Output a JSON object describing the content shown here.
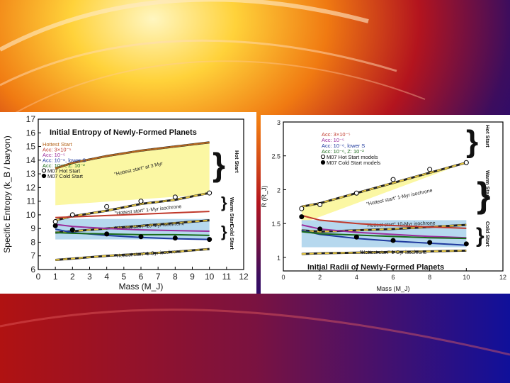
{
  "chart_data": [
    {
      "type": "line",
      "title": "Initial Entropy of Newly-Formed Planets",
      "xlabel": "Mass (M_J)",
      "ylabel": "Specific Entropy (k_B / baryon)",
      "xlim": [
        0,
        12
      ],
      "ylim": [
        6,
        17
      ],
      "xticks": [
        "0",
        "1",
        "2",
        "3",
        "4",
        "5",
        "6",
        "7",
        "8",
        "9",
        "10",
        "11",
        "12"
      ],
      "yticks": [
        "6",
        "7",
        "8",
        "9",
        "10",
        "11",
        "12",
        "13",
        "14",
        "15",
        "16",
        "17"
      ],
      "legend": [
        {
          "label": "Hottest Start",
          "color": "#b5651d"
        },
        {
          "label": "Acc: 3×10⁻⁵",
          "color": "#c0392b"
        },
        {
          "label": "Acc: 10⁻⁵",
          "color": "#9b2d9b"
        },
        {
          "label": "Acc: 10⁻⁶, lower S",
          "color": "#1f3a9e"
        },
        {
          "label": "Acc: 10⁻⁶, Z: 10⁻²",
          "color": "#1a6b1a"
        },
        {
          "label": "M07 Hot Start",
          "color": "#000000"
        },
        {
          "label": "M07 Cold Start",
          "color": "#000000"
        }
      ],
      "legend_position": "top-left",
      "series": [
        {
          "name": "Hottest Start",
          "x": [
            1,
            2,
            4,
            6,
            8,
            10
          ],
          "values": [
            13.4,
            13.8,
            14.3,
            14.7,
            15.0,
            15.3
          ]
        },
        {
          "name": "Acc: 3×10⁻⁵",
          "x": [
            1,
            2,
            4,
            6,
            8,
            10
          ],
          "values": [
            9.8,
            9.85,
            9.95,
            10.05,
            10.15,
            10.25
          ]
        },
        {
          "name": "Acc: 10⁻⁵",
          "x": [
            1,
            2,
            4,
            6,
            8,
            10
          ],
          "values": [
            9.3,
            9.15,
            9.0,
            8.9,
            8.85,
            8.8
          ]
        },
        {
          "name": "Acc: 10⁻⁶, lower S",
          "x": [
            1,
            2,
            4,
            6,
            8,
            10
          ],
          "values": [
            8.95,
            8.7,
            8.5,
            8.35,
            8.25,
            8.2
          ]
        },
        {
          "name": "Acc: 10⁻⁶, Z: 10⁻²",
          "x": [
            1,
            2,
            4,
            6,
            8,
            10
          ],
          "values": [
            8.7,
            8.65,
            8.6,
            8.55,
            8.55,
            8.5
          ]
        },
        {
          "name": "M07 Hot Start",
          "x": [
            1,
            2,
            4,
            6,
            8,
            10
          ],
          "values": [
            9.5,
            10.0,
            10.6,
            11.0,
            11.3,
            11.6
          ],
          "marker": "open-circle"
        },
        {
          "name": "M07 Cold Start",
          "x": [
            1,
            2,
            4,
            6,
            8,
            10
          ],
          "values": [
            9.2,
            8.9,
            8.6,
            8.4,
            8.3,
            8.2
          ],
          "marker": "filled-circle"
        }
      ],
      "isochrones": [
        {
          "label": "\"Hottest start\" at 3 Myr",
          "x": [
            1,
            2,
            4,
            6,
            8,
            10
          ],
          "values": [
            13.4,
            13.8,
            14.3,
            14.7,
            15.0,
            15.3
          ]
        },
        {
          "label": "\"Hottest start\" 1-Myr isochrone",
          "x": [
            1,
            2,
            4,
            6,
            8,
            10
          ],
          "values": [
            9.6,
            9.9,
            10.3,
            10.8,
            11.1,
            11.6
          ]
        },
        {
          "label": "\"Hottest start\" 10-Myr isochrone",
          "x": [
            1,
            2,
            4,
            6,
            8,
            10
          ],
          "values": [
            8.7,
            8.8,
            9.0,
            9.2,
            9.4,
            9.6
          ]
        },
        {
          "label": "\"Hottest start\" 1-Gyr isochrone",
          "x": [
            1,
            2,
            4,
            6,
            8,
            10
          ],
          "values": [
            6.7,
            6.8,
            7.0,
            7.15,
            7.3,
            7.5
          ]
        }
      ],
      "regions": [
        {
          "label": "Hot Start",
          "ymin": 11.5,
          "ymax": 15.3,
          "color": "#fbf7a3"
        },
        {
          "label": "Warm Start",
          "ymin": 9.7,
          "ymax": 11.5,
          "color": "#ffffff"
        },
        {
          "label": "Cold Start",
          "ymin": 8.2,
          "ymax": 9.7,
          "color": "#b6d8ee"
        }
      ]
    },
    {
      "type": "line",
      "title": "Initial Radii of Newly-Formed Planets",
      "xlabel": "Mass (M_J)",
      "ylabel": "R (R_J)",
      "xlim": [
        0,
        12
      ],
      "ylim": [
        0.8,
        3
      ],
      "xticks": [
        "0",
        "2",
        "4",
        "6",
        "8",
        "10",
        "12"
      ],
      "yticks": [
        "1",
        "1.5",
        "2",
        "2.5",
        "3"
      ],
      "legend": [
        {
          "label": "Acc: 3×10⁻⁵",
          "color": "#c0392b"
        },
        {
          "label": "Acc: 10⁻⁵",
          "color": "#9b2d9b"
        },
        {
          "label": "Acc: 10⁻⁶, lower S",
          "color": "#1f3a9e"
        },
        {
          "label": "Acc: 10⁻⁶, Z: 10⁻²",
          "color": "#1a6b1a"
        },
        {
          "label": "M07 Hot Start models",
          "color": "#000000"
        },
        {
          "label": "M07 Cold Start models",
          "color": "#000000"
        }
      ],
      "legend_position": "top-left",
      "series": [
        {
          "name": "Acc: 3×10⁻⁵",
          "x": [
            1,
            2,
            4,
            6,
            8,
            10
          ],
          "values": [
            1.62,
            1.55,
            1.5,
            1.47,
            1.45,
            1.43
          ]
        },
        {
          "name": "Acc: 10⁻⁵",
          "x": [
            1,
            2,
            4,
            6,
            8,
            10
          ],
          "values": [
            1.48,
            1.42,
            1.37,
            1.34,
            1.31,
            1.29
          ]
        },
        {
          "name": "Acc: 10⁻⁶, lower S",
          "x": [
            1,
            2,
            4,
            6,
            8,
            10
          ],
          "values": [
            1.4,
            1.34,
            1.28,
            1.24,
            1.21,
            1.18
          ]
        },
        {
          "name": "Acc: 10⁻⁶, Z: 10⁻²",
          "x": [
            1,
            2,
            4,
            6,
            8,
            10
          ],
          "values": [
            1.38,
            1.35,
            1.33,
            1.31,
            1.29,
            1.28
          ]
        },
        {
          "name": "M07 Hot Start models",
          "x": [
            1,
            2,
            4,
            6,
            8,
            10
          ],
          "values": [
            1.72,
            1.78,
            1.95,
            2.15,
            2.3,
            2.4
          ],
          "marker": "open-circle"
        },
        {
          "name": "M07 Cold Start models",
          "x": [
            1,
            2,
            4,
            6,
            8,
            10
          ],
          "values": [
            1.6,
            1.42,
            1.3,
            1.25,
            1.22,
            1.2
          ],
          "marker": "filled-circle"
        }
      ],
      "isochrones": [
        {
          "label": "\"Hottest start\" 1-Myr isochrone",
          "x": [
            1,
            2,
            4,
            6,
            8,
            10
          ],
          "values": [
            1.75,
            1.8,
            1.95,
            2.1,
            2.25,
            2.4
          ]
        },
        {
          "label": "\"Hottest start\" 10-Myr isochrone",
          "x": [
            1,
            2,
            4,
            6,
            8,
            10
          ],
          "values": [
            1.4,
            1.38,
            1.4,
            1.42,
            1.45,
            1.48
          ]
        },
        {
          "label": "\"Hottest start\" 1-Gyr isochrone",
          "x": [
            1,
            2,
            4,
            6,
            8,
            10
          ],
          "values": [
            1.05,
            1.06,
            1.07,
            1.08,
            1.09,
            1.1
          ]
        }
      ],
      "regions": [
        {
          "label": "Hot Start",
          "ymin": 2.4,
          "ymax": 3.0,
          "color": "#fbf7a3"
        },
        {
          "label": "Warm Start",
          "ymin": 1.55,
          "ymax": 2.4,
          "color": "#ffffff"
        },
        {
          "label": "Cold Start",
          "ymin": 1.15,
          "ymax": 1.55,
          "color": "#b6d8ee"
        }
      ]
    }
  ]
}
